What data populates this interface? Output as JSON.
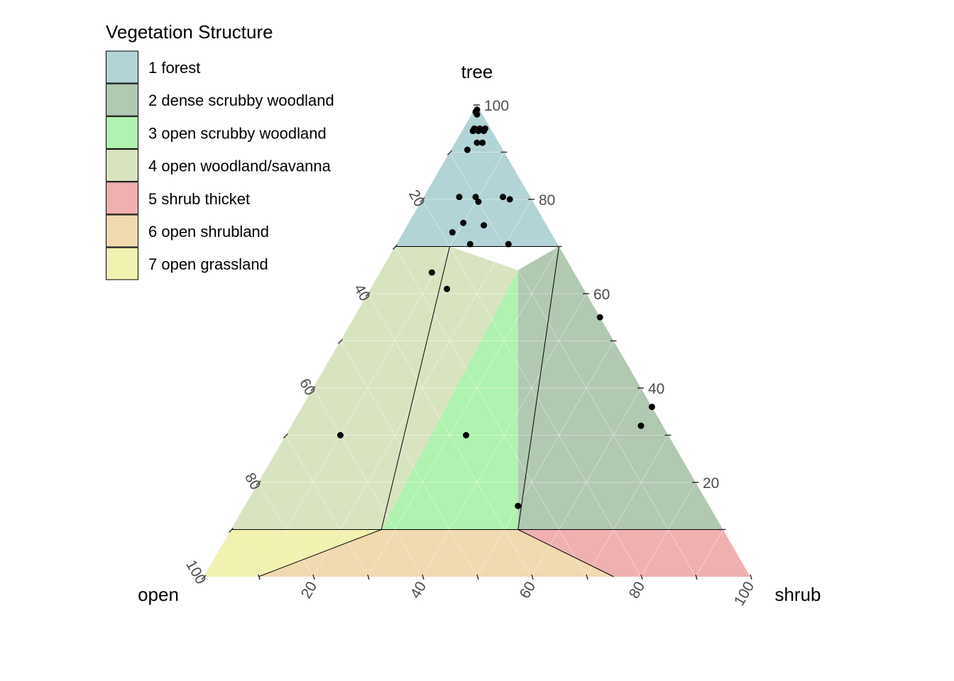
{
  "chart_data": {
    "type": "ternary",
    "axes": {
      "top": {
        "label": "tree"
      },
      "left": {
        "label": "open"
      },
      "right": {
        "label": "shrub"
      }
    },
    "ticks": [
      20,
      40,
      60,
      80,
      100
    ],
    "legend": {
      "title": "Vegetation Structure",
      "placement": "top-left",
      "items": [
        {
          "label": "1 forest",
          "color": "#b3d4d6"
        },
        {
          "label": "2 dense scrubby woodland",
          "color": "#b1c8b1"
        },
        {
          "label": "3 open scrubby woodland",
          "color": "#b0f2b0"
        },
        {
          "label": "4 open woodland/savanna",
          "color": "#d8e4c0"
        },
        {
          "label": "5 shrub thicket",
          "color": "#f1b0b0"
        },
        {
          "label": "6 open shrubland",
          "color": "#f1d9b0"
        },
        {
          "label": "7 open grassland",
          "color": "#f1f1b0"
        }
      ]
    },
    "regions": [
      {
        "class": 1,
        "vertices": [
          [
            100,
            0,
            0
          ],
          [
            70,
            30,
            0
          ],
          [
            70,
            0,
            30
          ]
        ]
      },
      {
        "class": 2,
        "vertices": [
          [
            70,
            0,
            30
          ],
          [
            65,
            10,
            25
          ],
          [
            10,
            37.5,
            52.5
          ],
          [
            10,
            0,
            90
          ],
          [
            70,
            0,
            30
          ]
        ]
      },
      {
        "class": 3,
        "vertices": [
          [
            65,
            10,
            25
          ],
          [
            10,
            62.5,
            27.5
          ],
          [
            10,
            37.5,
            52.5
          ]
        ]
      },
      {
        "class": 4,
        "vertices": [
          [
            70,
            30,
            0
          ],
          [
            70,
            20,
            10
          ],
          [
            65,
            10,
            25
          ],
          [
            10,
            62.5,
            27.5
          ],
          [
            10,
            90,
            0
          ]
        ]
      },
      {
        "class": 5,
        "vertices": [
          [
            10,
            0,
            90
          ],
          [
            0,
            0,
            100
          ],
          [
            0,
            25,
            75
          ],
          [
            10,
            37.5,
            52.5
          ]
        ]
      },
      {
        "class": 6,
        "vertices": [
          [
            10,
            37.5,
            52.5
          ],
          [
            0,
            25,
            75
          ],
          [
            0,
            90,
            10
          ],
          [
            10,
            62.5,
            27.5
          ]
        ]
      },
      {
        "class": 7,
        "vertices": [
          [
            10,
            90,
            0
          ],
          [
            10,
            62.5,
            27.5
          ],
          [
            0,
            90,
            10
          ],
          [
            0,
            100,
            0
          ]
        ]
      }
    ],
    "points": [
      [
        99,
        0.5,
        0.5
      ],
      [
        98.5,
        1,
        0.5
      ],
      [
        98,
        1,
        1
      ],
      [
        95,
        3,
        2
      ],
      [
        95,
        2,
        3
      ],
      [
        95,
        1,
        4
      ],
      [
        94.5,
        3.5,
        2
      ],
      [
        94.5,
        2.5,
        3
      ],
      [
        94.5,
        1.5,
        4
      ],
      [
        92,
        4,
        4
      ],
      [
        92,
        3,
        5
      ],
      [
        90.5,
        6.5,
        3
      ],
      [
        80.5,
        10,
        9.5
      ],
      [
        80.5,
        13,
        6.5
      ],
      [
        80.5,
        5,
        14.5
      ],
      [
        80,
        4,
        16
      ],
      [
        79.5,
        10,
        10.5
      ],
      [
        75,
        15,
        10
      ],
      [
        74.5,
        11.5,
        14
      ],
      [
        73,
        18,
        9
      ],
      [
        70.5,
        16,
        13.5
      ],
      [
        70.5,
        9,
        20.5
      ],
      [
        64.5,
        26,
        9.5
      ],
      [
        61,
        25,
        14
      ],
      [
        55,
        0,
        45
      ],
      [
        36,
        0,
        64
      ],
      [
        32,
        4,
        64
      ],
      [
        30,
        60,
        10
      ],
      [
        30,
        37,
        33
      ],
      [
        15,
        35,
        50
      ]
    ]
  }
}
